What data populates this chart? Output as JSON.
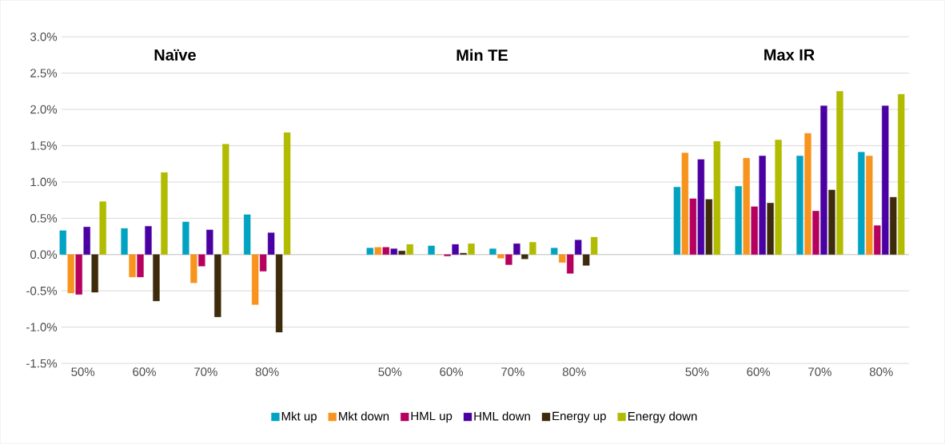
{
  "chart_data": {
    "type": "bar",
    "categories": [
      "50%",
      "60%",
      "70%",
      "80%",
      null,
      "50%",
      "60%",
      "70%",
      "80%",
      null,
      "50%",
      "60%",
      "70%",
      "80%"
    ],
    "series": [
      {
        "name": "Mkt up",
        "color": "#00a3c1",
        "values": [
          0.33,
          0.36,
          0.45,
          0.55,
          null,
          0.09,
          0.12,
          0.08,
          0.09,
          null,
          0.93,
          0.94,
          1.36,
          1.41
        ]
      },
      {
        "name": "Mkt down",
        "color": "#f7941d",
        "values": [
          -0.53,
          -0.31,
          -0.39,
          -0.69,
          null,
          0.1,
          0.0,
          -0.05,
          -0.11,
          null,
          1.4,
          1.33,
          1.67,
          1.36
        ]
      },
      {
        "name": "HML up",
        "color": "#b5005f",
        "values": [
          -0.55,
          -0.31,
          -0.16,
          -0.23,
          null,
          0.1,
          -0.02,
          -0.14,
          -0.26,
          null,
          0.77,
          0.66,
          0.6,
          0.4
        ]
      },
      {
        "name": "HML down",
        "color": "#4b00a3",
        "values": [
          0.38,
          0.39,
          0.34,
          0.3,
          null,
          0.08,
          0.14,
          0.15,
          0.2,
          null,
          1.31,
          1.36,
          2.05,
          2.05
        ]
      },
      {
        "name": "Energy up",
        "color": "#3d2b0c",
        "values": [
          -0.52,
          -0.64,
          -0.86,
          -1.07,
          null,
          0.05,
          0.02,
          -0.06,
          -0.15,
          null,
          0.76,
          0.71,
          0.89,
          0.79
        ]
      },
      {
        "name": "Energy down",
        "color": "#b1bb00",
        "values": [
          0.73,
          1.13,
          1.52,
          1.68,
          null,
          0.14,
          0.15,
          0.17,
          0.24,
          null,
          1.56,
          1.58,
          2.25,
          2.21
        ]
      }
    ],
    "annotations": [
      "Naïve",
      "Min TE",
      "Max IR"
    ],
    "ylim": [
      -1.5,
      3.0
    ],
    "yticks": [
      {
        "value": -1.5,
        "label": "-1.5%"
      },
      {
        "value": -1.0,
        "label": "-1.0%"
      },
      {
        "value": -0.5,
        "label": "-0.5%"
      },
      {
        "value": 0.0,
        "label": "0.0%"
      },
      {
        "value": 0.5,
        "label": "0.5%"
      },
      {
        "value": 1.0,
        "label": "1.0%"
      },
      {
        "value": 1.5,
        "label": "1.5%"
      },
      {
        "value": 2.0,
        "label": "2.0%"
      },
      {
        "value": 2.5,
        "label": "2.5%"
      },
      {
        "value": 3.0,
        "label": "3.0%"
      }
    ],
    "grid": "y",
    "legend": "bottom"
  }
}
